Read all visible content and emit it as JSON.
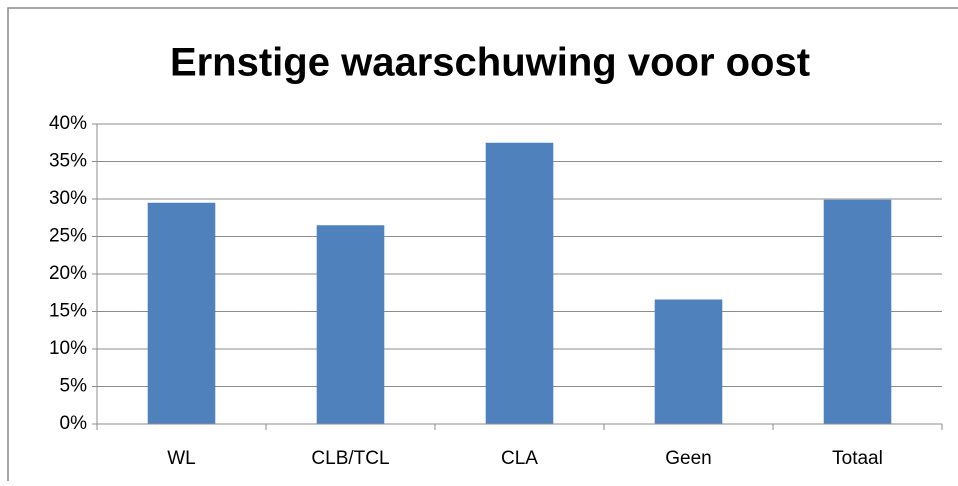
{
  "chart_data": {
    "type": "bar",
    "title": "Ernstige waarschuwing voor oost",
    "categories": [
      "WL",
      "CLB/TCL",
      "CLA",
      "Geen",
      "Totaal"
    ],
    "values": [
      29.5,
      26.5,
      37.5,
      16.6,
      29.9
    ],
    "color": "#4f81bd",
    "ylim": [
      0,
      40
    ],
    "yticks": [
      {
        "value": 0,
        "label": "0%"
      },
      {
        "value": 5,
        "label": "5%"
      },
      {
        "value": 10,
        "label": "10%"
      },
      {
        "value": 15,
        "label": "15%"
      },
      {
        "value": 20,
        "label": "20%"
      },
      {
        "value": 25,
        "label": "25%"
      },
      {
        "value": 30,
        "label": "30%"
      },
      {
        "value": 35,
        "label": "35%"
      },
      {
        "value": 40,
        "label": "40%"
      }
    ],
    "grid": true
  }
}
